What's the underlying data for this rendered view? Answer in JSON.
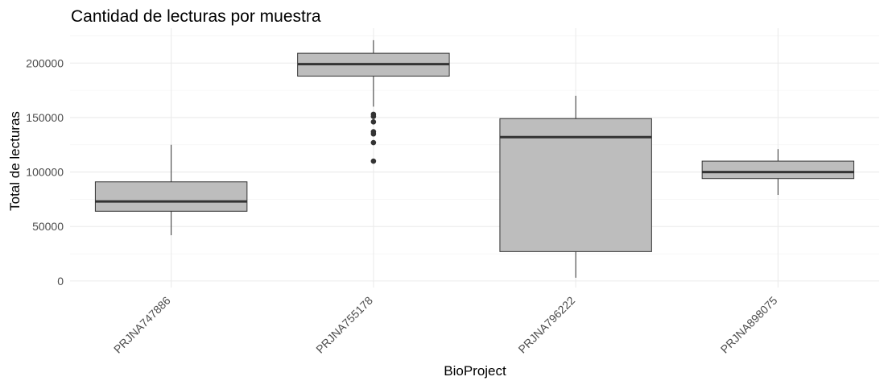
{
  "chart_data": {
    "type": "boxplot",
    "title": "Cantidad de lecturas por muestra",
    "xlabel": "BioProject",
    "ylabel": "Total de lecturas",
    "ylim": [
      -6000,
      232000
    ],
    "yticks": [
      0,
      50000,
      100000,
      150000,
      200000
    ],
    "ytick_labels": [
      "0",
      "50000",
      "100000",
      "150000",
      "200000"
    ],
    "grid": true,
    "legend": "none",
    "box_color": "#bdbdbd",
    "line_color": "#333333",
    "categories": [
      "PRJNA747886",
      "PRJNA755178",
      "PRJNA796222",
      "PRJNA898075"
    ],
    "boxes": [
      {
        "category": "PRJNA747886",
        "min": 42000,
        "q1": 64000,
        "median": 73000,
        "q3": 91000,
        "max": 125000,
        "outliers": []
      },
      {
        "category": "PRJNA755178",
        "min": 160000,
        "q1": 188000,
        "median": 199000,
        "q3": 209000,
        "max": 221000,
        "outliers": [
          153000,
          151000,
          146000,
          137000,
          135000,
          127000,
          110000
        ]
      },
      {
        "category": "PRJNA796222",
        "min": 3000,
        "q1": 27000,
        "median": 132000,
        "q3": 149000,
        "max": 170000,
        "outliers": []
      },
      {
        "category": "PRJNA898075",
        "min": 79000,
        "q1": 94000,
        "median": 100000,
        "q3": 110000,
        "max": 121000,
        "outliers": []
      }
    ]
  }
}
